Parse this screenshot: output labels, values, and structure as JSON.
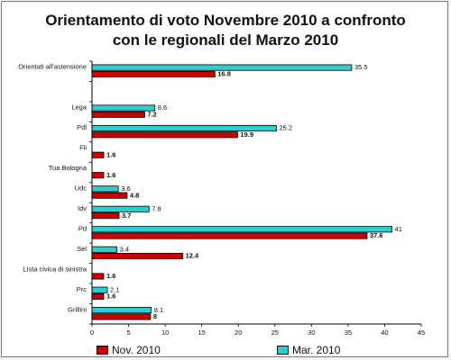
{
  "chart_data": {
    "type": "bar",
    "orientation": "horizontal",
    "title_lines": [
      "Orientamento di voto Novembre 2010 a confronto",
      "con le regionali del Marzo 2010"
    ],
    "categories": [
      "Orientati all'astensione",
      "",
      "Lega",
      "Pdl",
      "Fli",
      "Tua Bologna",
      "Udc",
      "Idv",
      "Pd",
      "Sel",
      "Lista civica di sinistra",
      "Prc",
      "Grillini"
    ],
    "series": [
      {
        "name": "Mar. 2010",
        "color": "#33cccc",
        "values": [
          35.5,
          null,
          8.6,
          25.2,
          null,
          null,
          3.6,
          7.8,
          41,
          3.4,
          null,
          2.1,
          8.1
        ]
      },
      {
        "name": "Nov. 2010",
        "color": "#cc0000",
        "values": [
          16.8,
          null,
          7.2,
          19.9,
          1.6,
          1.6,
          4.8,
          3.7,
          37.6,
          12.4,
          1.6,
          1.6,
          8
        ]
      }
    ],
    "x_ticks": [
      "0",
      "5",
      "10",
      "15",
      "20",
      "25",
      "30",
      "35",
      "40",
      "45"
    ],
    "xlim": [
      0,
      45
    ],
    "legend_position": "bottom"
  }
}
